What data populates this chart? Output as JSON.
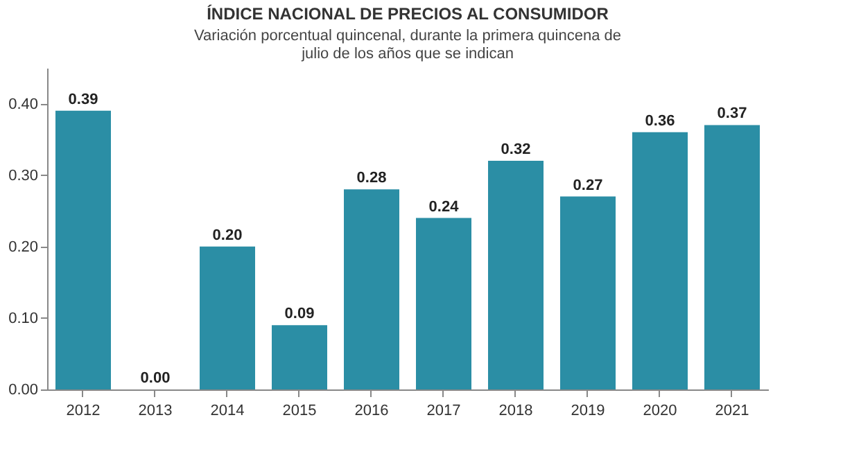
{
  "chart_data": {
    "type": "bar",
    "title": "ÍNDICE NACIONAL DE PRECIOS AL CONSUMIDOR",
    "subtitle": [
      "Variación porcentual quincenal, durante la primera quincena de",
      "julio de los años que se indican"
    ],
    "categories": [
      "2012",
      "2013",
      "2014",
      "2015",
      "2016",
      "2017",
      "2018",
      "2019",
      "2020",
      "2021"
    ],
    "values": [
      0.39,
      0.0,
      0.2,
      0.09,
      0.28,
      0.24,
      0.32,
      0.27,
      0.36,
      0.37
    ],
    "value_labels": [
      "0.39",
      "0.00",
      "0.20",
      "0.09",
      "0.28",
      "0.24",
      "0.32",
      "0.27",
      "0.36",
      "0.37"
    ],
    "color": "#2b8ea5",
    "ylim": [
      0,
      0.45
    ],
    "yticks": [
      {
        "value": 0,
        "label": "0.00"
      },
      {
        "value": 0.1,
        "label": "0.10"
      },
      {
        "value": 0.2,
        "label": "0.20"
      },
      {
        "value": 0.3,
        "label": "0.30"
      },
      {
        "value": 0.4,
        "label": "0.40"
      }
    ],
    "grid": false
  }
}
